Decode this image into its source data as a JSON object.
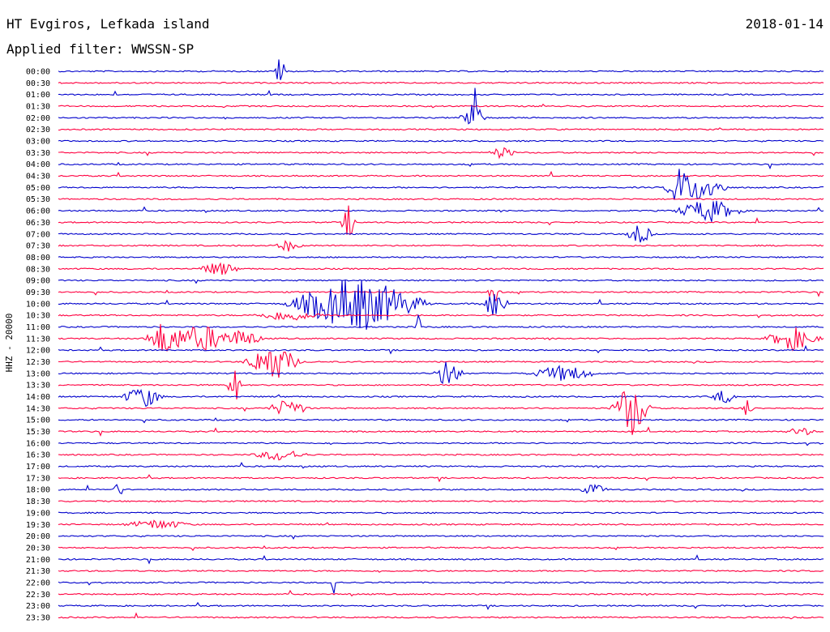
{
  "header": {
    "station": "HT Evgiros, Lefkada island",
    "filter": "Applied filter: WWSSN-SP",
    "date": "2018-01-14"
  },
  "chart_data": {
    "type": "line",
    "title": "HT Evgiros, Lefkada island",
    "subtitle": "Applied filter: WWSSN-SP",
    "ylabel": "HHZ - 20000",
    "rows": [
      "00:00",
      "00:30",
      "01:00",
      "01:30",
      "02:00",
      "02:30",
      "03:00",
      "03:30",
      "04:00",
      "04:30",
      "05:00",
      "05:30",
      "06:00",
      "06:30",
      "07:00",
      "07:30",
      "08:00",
      "08:30",
      "09:00",
      "09:30",
      "10:00",
      "10:30",
      "11:00",
      "11:30",
      "12:00",
      "12:30",
      "13:00",
      "13:30",
      "14:00",
      "14:30",
      "15:00",
      "15:30",
      "16:00",
      "16:30",
      "17:00",
      "17:30",
      "18:00",
      "18:30",
      "19:00",
      "19:30",
      "20:00",
      "20:30",
      "21:00",
      "21:30",
      "22:00",
      "22:30",
      "23:00",
      "23:30"
    ],
    "series_colors": [
      "#0000cc",
      "#ff0040"
    ],
    "events": [
      {
        "row": "00:00",
        "pos": 0.29,
        "amp": 1.3,
        "dur": 0.01
      },
      {
        "row": "02:00",
        "pos": 0.54,
        "amp": 1.4,
        "dur": 0.02
      },
      {
        "row": "02:00",
        "pos": 0.545,
        "amp": 3.0,
        "dur": 0.002
      },
      {
        "row": "03:30",
        "pos": 0.58,
        "amp": 0.5,
        "dur": 0.02
      },
      {
        "row": "05:00",
        "pos": 0.81,
        "amp": 1.4,
        "dur": 0.02
      },
      {
        "row": "05:00",
        "pos": 0.84,
        "amp": 1.2,
        "dur": 0.04
      },
      {
        "row": "06:00",
        "pos": 0.85,
        "amp": 1.0,
        "dur": 0.05
      },
      {
        "row": "06:30",
        "pos": 0.38,
        "amp": 1.6,
        "dur": 0.01
      },
      {
        "row": "07:00",
        "pos": 0.76,
        "amp": 0.9,
        "dur": 0.02
      },
      {
        "row": "07:30",
        "pos": 0.3,
        "amp": 0.5,
        "dur": 0.02
      },
      {
        "row": "08:30",
        "pos": 0.21,
        "amp": 0.6,
        "dur": 0.03
      },
      {
        "row": "09:30",
        "pos": 0.57,
        "amp": 1.0,
        "dur": 0.01
      },
      {
        "row": "10:00",
        "pos": 0.39,
        "amp": 2.5,
        "dur": 0.1
      },
      {
        "row": "10:00",
        "pos": 0.57,
        "amp": 1.4,
        "dur": 0.02
      },
      {
        "row": "10:30",
        "pos": 0.3,
        "amp": 0.5,
        "dur": 0.05
      },
      {
        "row": "11:00",
        "pos": 0.47,
        "amp": 2.0,
        "dur": 0.004
      },
      {
        "row": "11:30",
        "pos": 0.14,
        "amp": 1.6,
        "dur": 0.03
      },
      {
        "row": "11:30",
        "pos": 0.19,
        "amp": 1.2,
        "dur": 0.04
      },
      {
        "row": "11:30",
        "pos": 0.24,
        "amp": 0.8,
        "dur": 0.03
      },
      {
        "row": "11:30",
        "pos": 0.96,
        "amp": 1.0,
        "dur": 0.04
      },
      {
        "row": "12:30",
        "pos": 0.28,
        "amp": 1.7,
        "dur": 0.04
      },
      {
        "row": "13:00",
        "pos": 0.51,
        "amp": 1.5,
        "dur": 0.02
      },
      {
        "row": "13:00",
        "pos": 0.66,
        "amp": 0.7,
        "dur": 0.05
      },
      {
        "row": "13:30",
        "pos": 0.23,
        "amp": 1.8,
        "dur": 0.01
      },
      {
        "row": "14:00",
        "pos": 0.11,
        "amp": 1.0,
        "dur": 0.03
      },
      {
        "row": "14:00",
        "pos": 0.87,
        "amp": 0.6,
        "dur": 0.02
      },
      {
        "row": "14:30",
        "pos": 0.3,
        "amp": 0.8,
        "dur": 0.03
      },
      {
        "row": "14:30",
        "pos": 0.75,
        "amp": 2.5,
        "dur": 0.03
      },
      {
        "row": "14:30",
        "pos": 0.9,
        "amp": 0.7,
        "dur": 0.01
      },
      {
        "row": "15:30",
        "pos": 0.97,
        "amp": 0.4,
        "dur": 0.02
      },
      {
        "row": "16:30",
        "pos": 0.29,
        "amp": 0.5,
        "dur": 0.04
      },
      {
        "row": "18:00",
        "pos": 0.08,
        "amp": 0.6,
        "dur": 0.01
      },
      {
        "row": "18:00",
        "pos": 0.7,
        "amp": 0.5,
        "dur": 0.02
      },
      {
        "row": "19:30",
        "pos": 0.13,
        "amp": 0.4,
        "dur": 0.05
      },
      {
        "row": "22:00",
        "pos": 0.36,
        "amp": 2.8,
        "dur": 0.003
      }
    ]
  }
}
